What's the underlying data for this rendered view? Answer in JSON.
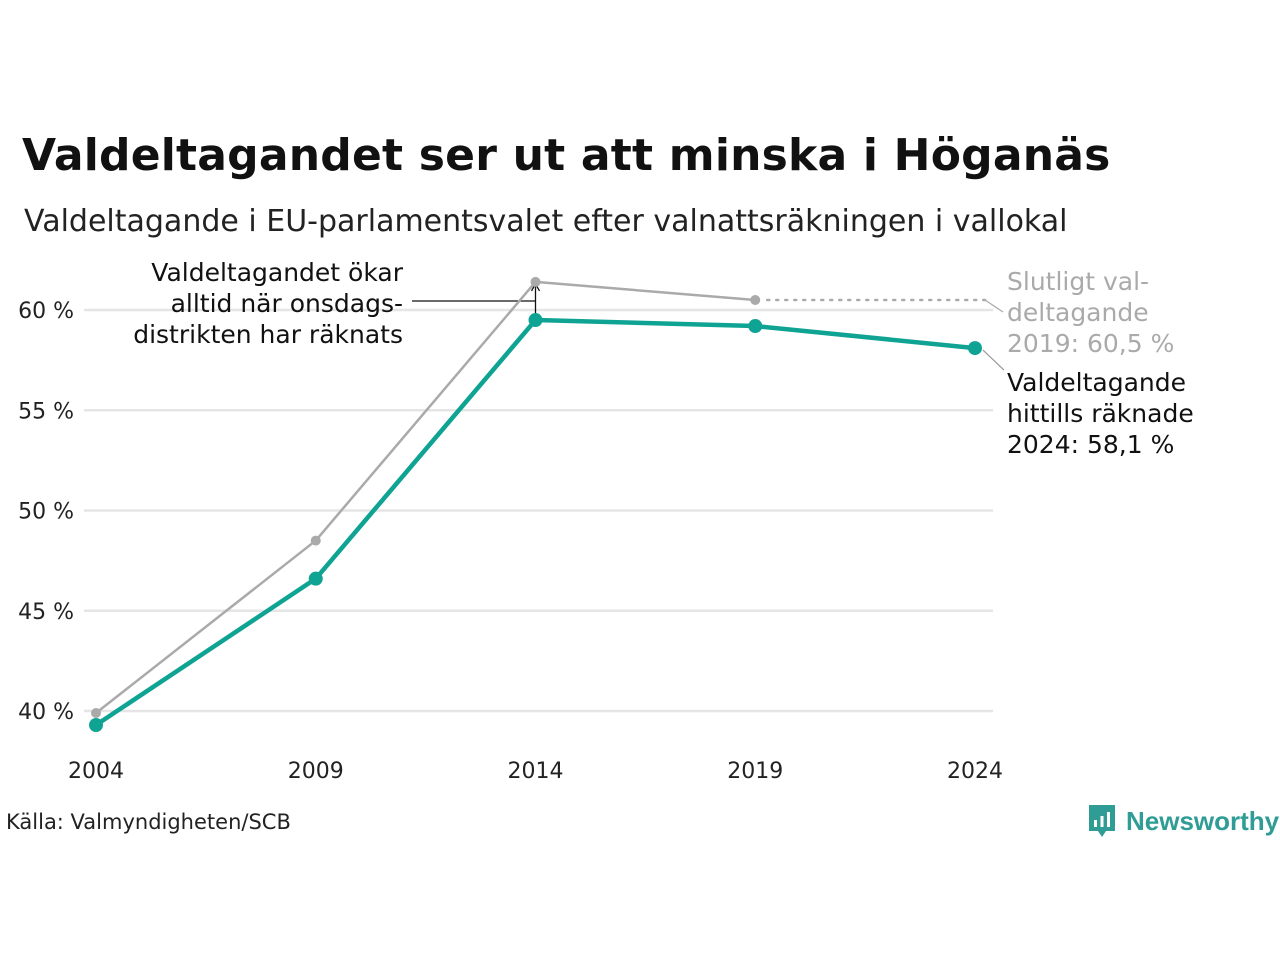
{
  "header": {
    "title": "Valdeltagandet ser ut att minska i Höganäs",
    "subtitle": "Valdeltagande i EU-parlamentsvalet efter valnattsräkningen i vallokal"
  },
  "footer": {
    "source": "Källa: Valmyndigheten/SCB",
    "brand": "Newsworthy"
  },
  "colors": {
    "teal": "#0fa394",
    "gray": "#aaaaaa",
    "grid": "#e5e5e5",
    "brand": "#2f9c95"
  },
  "chart_data": {
    "type": "line",
    "x": [
      2004,
      2009,
      2014,
      2019,
      2024
    ],
    "x_tick_labels": [
      "2004",
      "2009",
      "2014",
      "2019",
      "2024"
    ],
    "ylim": [
      39,
      62
    ],
    "y_ticks": [
      40,
      45,
      50,
      55,
      60
    ],
    "y_tick_labels": [
      "40 %",
      "45 %",
      "50 %",
      "55 %",
      "60 %"
    ],
    "grid": "horizontal",
    "series": [
      {
        "values": [
          39.9,
          48.5,
          61.4,
          60.5,
          null
        ],
        "style": "thin-gray"
      },
      {
        "values": [
          39.3,
          46.6,
          59.5,
          59.2,
          58.1
        ],
        "style": "thick-teal"
      }
    ],
    "annotations": {
      "onsdag": [
        "Valdeltagandet ökar",
        "alltid när onsdags-",
        "distrikten har räknats"
      ],
      "final_2019": [
        "Slutligt val-",
        "deltagande",
        "2019: 60,5 %"
      ],
      "counted_2024": [
        "Valdeltagande",
        "hittills räknade",
        "2024: 58,1 %"
      ]
    }
  }
}
